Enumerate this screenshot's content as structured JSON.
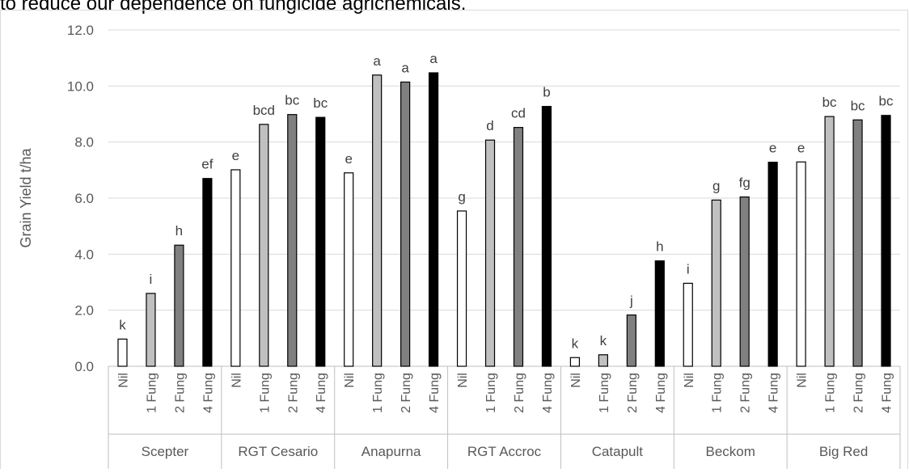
{
  "header": {
    "caption": "to reduce our dependence on fungicide agrichemicals."
  },
  "chart_data": {
    "type": "bar",
    "title": "",
    "xlabel": "",
    "ylabel": "Grain Yield t/ha",
    "ylim": [
      0,
      12
    ],
    "ytick_step": 2,
    "ytick_labels": [
      "0.0",
      "2.0",
      "4.0",
      "6.0",
      "8.0",
      "10.0",
      "12.0"
    ],
    "grid": true,
    "legend": "none",
    "treatments": [
      "Nil",
      "1 Fung",
      "2 Fung",
      "4 Fung"
    ],
    "treatment_colors": [
      "#ffffff",
      "#c0c0c0",
      "#808080",
      "#000000"
    ],
    "groups": [
      {
        "name": "Scepter",
        "values": [
          0.97,
          2.6,
          4.32,
          6.7
        ],
        "letters": [
          "k",
          "i",
          "h",
          "ef"
        ]
      },
      {
        "name": "RGT Cesario",
        "values": [
          7.01,
          8.63,
          8.98,
          8.88
        ],
        "letters": [
          "e",
          "bcd",
          "bc",
          "bc"
        ]
      },
      {
        "name": "Anapurna",
        "values": [
          6.9,
          10.39,
          10.14,
          10.47
        ],
        "letters": [
          "e",
          "a",
          "a",
          "a"
        ]
      },
      {
        "name": "RGT Accroc",
        "values": [
          5.54,
          8.07,
          8.52,
          9.27
        ],
        "letters": [
          "g",
          "d",
          "cd",
          "b"
        ]
      },
      {
        "name": "Catapult",
        "values": [
          0.31,
          0.41,
          1.83,
          3.76
        ],
        "letters": [
          "k",
          "k",
          "j",
          "h"
        ]
      },
      {
        "name": "Beckom",
        "values": [
          2.96,
          5.93,
          6.04,
          7.28
        ],
        "letters": [
          "i",
          "g",
          "fg",
          "e"
        ]
      },
      {
        "name": "Big Red",
        "values": [
          7.29,
          8.91,
          8.79,
          8.95
        ],
        "letters": [
          "e",
          "bc",
          "bc",
          "bc"
        ]
      }
    ]
  }
}
